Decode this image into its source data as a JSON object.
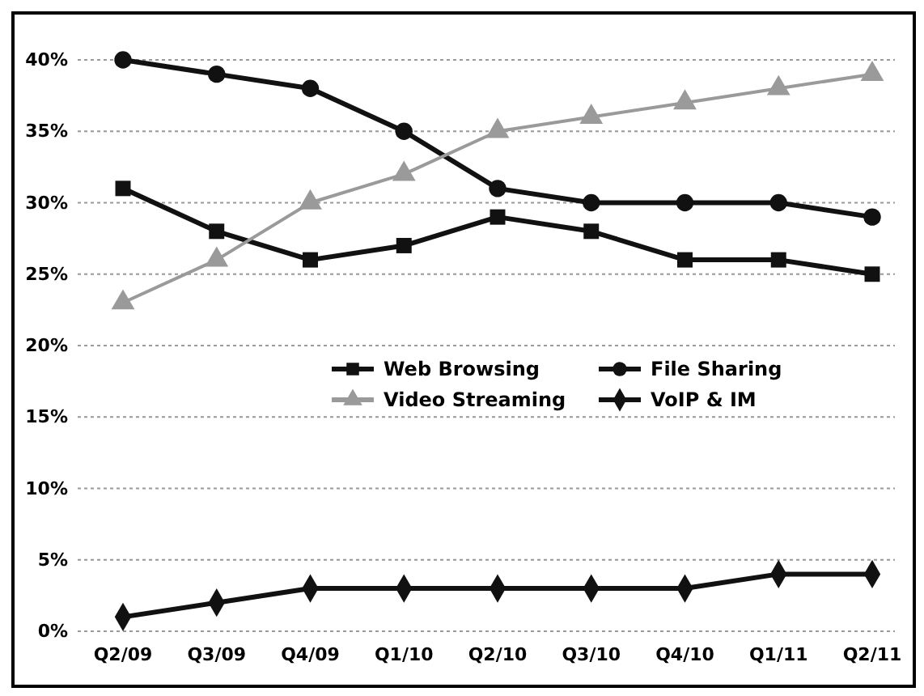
{
  "chart_data": {
    "type": "line",
    "categories": [
      "Q2/09",
      "Q3/09",
      "Q4/09",
      "Q1/10",
      "Q2/10",
      "Q3/10",
      "Q4/10",
      "Q1/11",
      "Q2/11"
    ],
    "series": [
      {
        "name": "Web Browsing",
        "color": "#111111",
        "marker": "square",
        "values": [
          31,
          28,
          26,
          27,
          29,
          28,
          26,
          26,
          25
        ]
      },
      {
        "name": "File Sharing",
        "color": "#111111",
        "marker": "circle",
        "values": [
          40,
          39,
          38,
          35,
          31,
          30,
          30,
          30,
          29
        ]
      },
      {
        "name": "Video Streaming",
        "color": "#9a9a9a",
        "marker": "triangle",
        "values": [
          23,
          26,
          30,
          32,
          35,
          36,
          37,
          38,
          39
        ]
      },
      {
        "name": "VoIP & IM",
        "color": "#111111",
        "marker": "diamond",
        "values": [
          1,
          2,
          3,
          3,
          3,
          3,
          3,
          4,
          4
        ]
      }
    ],
    "ylim": [
      0,
      40
    ],
    "yticks": [
      {
        "value": 0,
        "label": "0%"
      },
      {
        "value": 5,
        "label": "5%"
      },
      {
        "value": 10,
        "label": "10%"
      },
      {
        "value": 15,
        "label": "15%"
      },
      {
        "value": 20,
        "label": "20%"
      },
      {
        "value": 25,
        "label": "25%"
      },
      {
        "value": 30,
        "label": "30%"
      },
      {
        "value": 35,
        "label": "35%"
      },
      {
        "value": 40,
        "label": "40%"
      }
    ],
    "grid": "y",
    "legend": "center",
    "line_style": "solid"
  }
}
